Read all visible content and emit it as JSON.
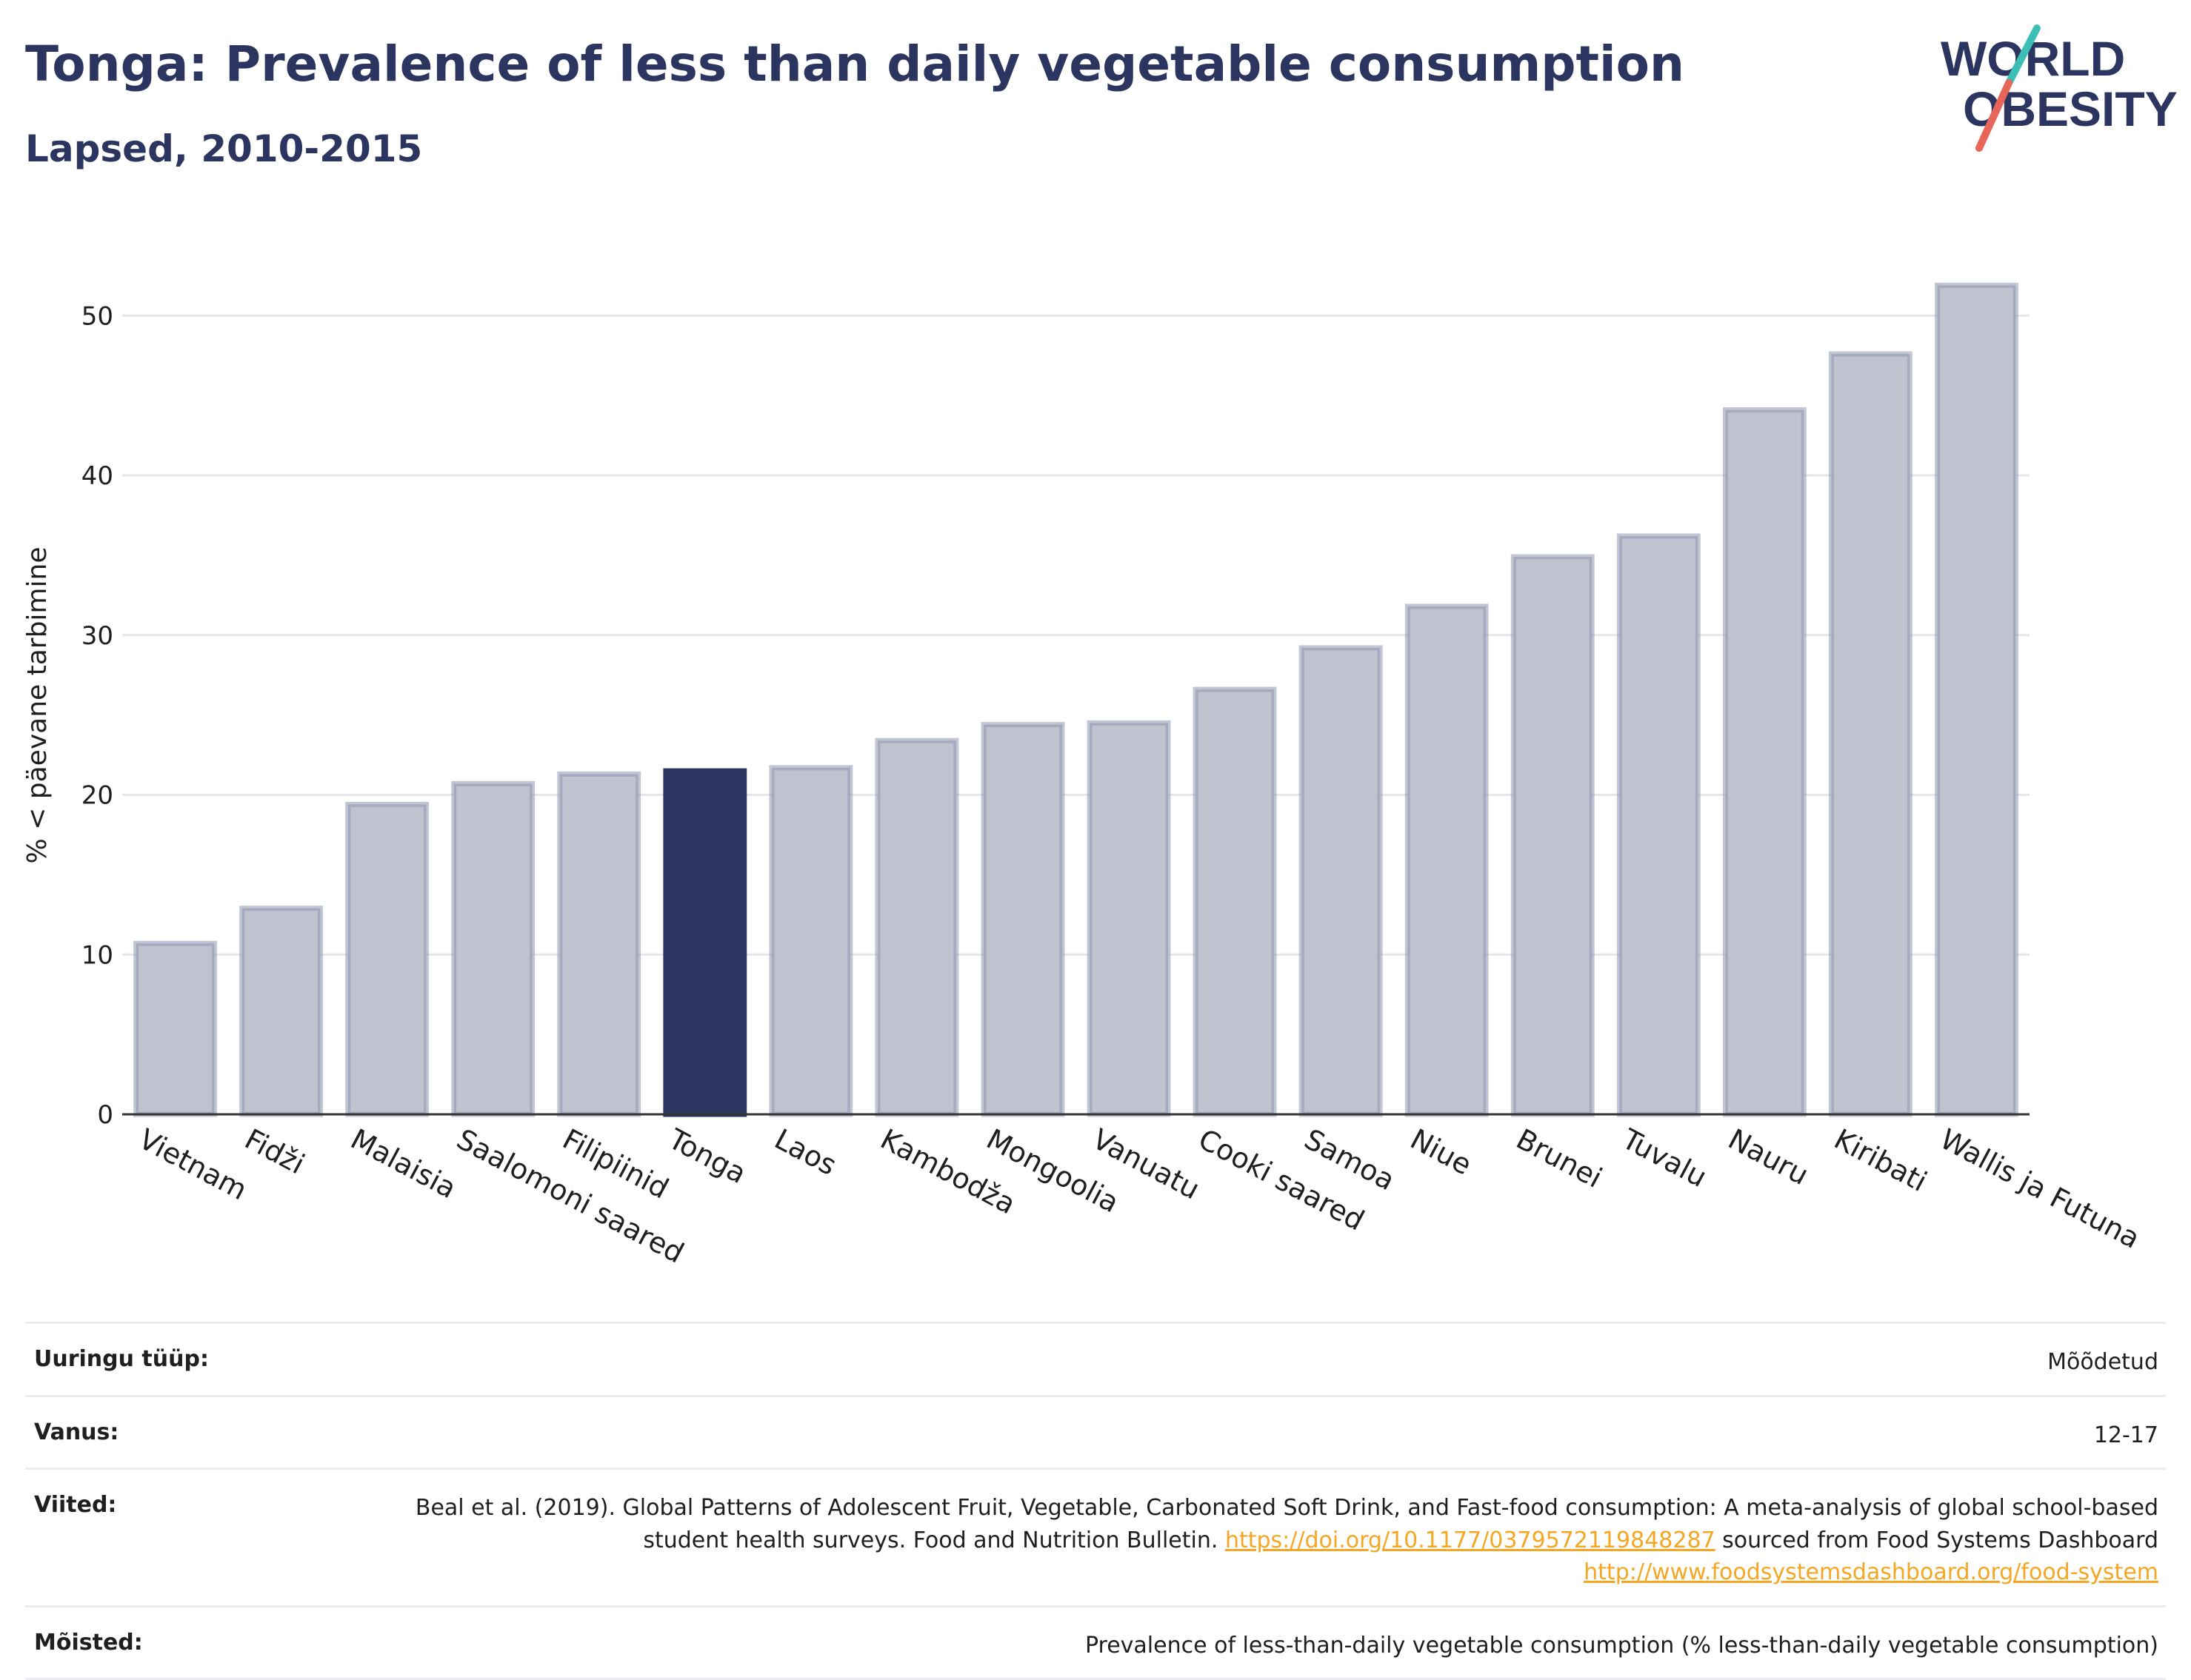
{
  "header": {
    "title": "Tonga: Prevalence of less than daily vegetable consumption",
    "subtitle": "Lapsed, 2010-2015"
  },
  "logo": {
    "line1": "WORLD",
    "line2": "OBESITY",
    "accent_teal": "#3cbfb4",
    "accent_red": "#e8655a"
  },
  "chart_data": {
    "type": "bar",
    "title": "Tonga: Prevalence of less than daily vegetable consumption",
    "subtitle": "Lapsed, 2010-2015",
    "ylabel": "% < päevane tarbimine",
    "xlabel": "",
    "ylim": [
      0,
      54
    ],
    "yticks": [
      0,
      10,
      20,
      30,
      40,
      50
    ],
    "grid": true,
    "categories": [
      "Vietnam",
      "Fidži",
      "Malaisia",
      "Saalomoni saared",
      "Filipiinid",
      "Tonga",
      "Laos",
      "Kambodža",
      "Mongoolia",
      "Vanuatu",
      "Cooki saared",
      "Samoa",
      "Niue",
      "Brunei",
      "Tuvalu",
      "Nauru",
      "Kiribati",
      "Wallis ja Futuna"
    ],
    "values": [
      10.7,
      12.9,
      19.4,
      20.7,
      21.3,
      21.5,
      21.7,
      23.4,
      24.4,
      24.5,
      26.6,
      29.2,
      31.8,
      34.9,
      36.2,
      44.1,
      47.6,
      51.9
    ],
    "highlight": "Tonga",
    "colors": {
      "bar": "#bfc3d0",
      "bar_border": "#8f96ae",
      "highlight": "#2b3560",
      "grid": "#e6e6ec",
      "axis": "#333333"
    }
  },
  "info": [
    {
      "label": "Uuringu tüüp:",
      "value": "Mõõdetud"
    },
    {
      "label": "Vanus:",
      "value": "12-17"
    },
    {
      "label": "Viited:",
      "value_pre": "Beal et al. (2019). Global Patterns of Adolescent Fruit, Vegetable, Carbonated Soft Drink, and Fast-food consumption: A meta-analysis of global school-based student health surveys. Food and Nutrition Bulletin.",
      "link1": "https://doi.org/10.1177/0379572119848287",
      "value_mid": "sourced from Food Systems Dashboard",
      "link2": "http://www.foodsystemsdashboard.org/food-system"
    },
    {
      "label": "Mõisted:",
      "value": "Prevalence of less-than-daily vegetable consumption (% less-than-daily vegetable consumption)"
    }
  ]
}
